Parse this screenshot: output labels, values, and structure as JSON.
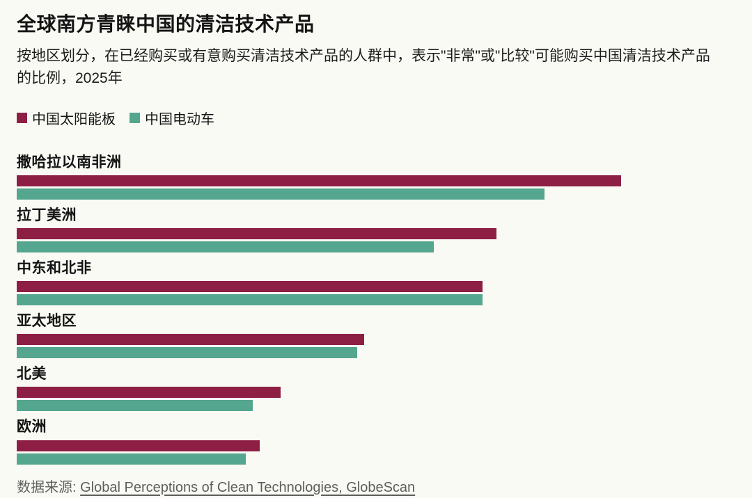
{
  "page": {
    "title": "全球南方青睐中国的清洁技术产品",
    "subtitle": "按地区划分，在已经购买或有意购买清洁技术产品的人群中，表示\"非常\"或\"比较\"可能购买中国清洁技术产品的比例，2025年",
    "source_prefix": "数据来源: ",
    "source_link": "Global Perceptions of Clean Technologies, GlobeScan"
  },
  "colors": {
    "solar": "#8d1f45",
    "ev": "#55a68e",
    "background": "#fafaf4",
    "text": "#141414",
    "source_text": "#5d5d5d"
  },
  "chart_data": {
    "type": "bar",
    "orientation": "horizontal",
    "title": "全球南方青睐中国的清洁技术产品",
    "subtitle": "按地区划分，在已经购买或有意购买清洁技术产品的人群中，表示\"非常\"或\"比较\"可能购买中国清洁技术产品的比例，2025年",
    "categories": [
      "撒哈拉以南非洲",
      "拉丁美洲",
      "中东和北非",
      "亚太地区",
      "北美",
      "欧洲"
    ],
    "series": [
      {
        "key": "solar",
        "name": "中国太阳能板",
        "color": "#8d1f45",
        "values": [
          87,
          69,
          67,
          50,
          38,
          35
        ]
      },
      {
        "key": "ev",
        "name": "中国电动车",
        "color": "#55a68e",
        "values": [
          76,
          60,
          67,
          49,
          34,
          33
        ]
      }
    ],
    "xlim": [
      0,
      100
    ],
    "unit": "%",
    "grid": false,
    "legend_position": "top",
    "value_labels": false
  }
}
